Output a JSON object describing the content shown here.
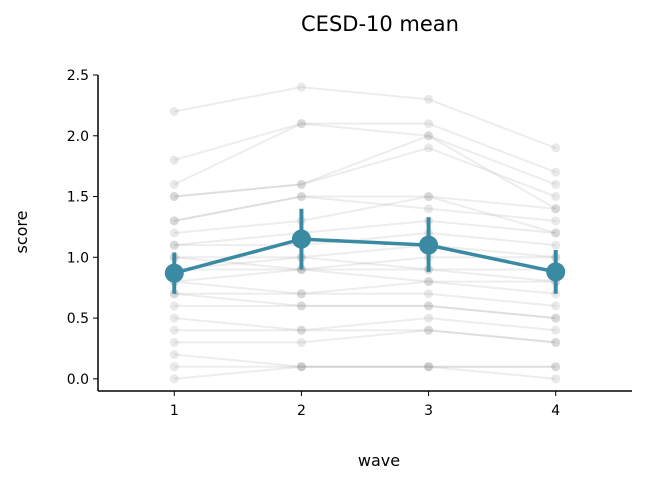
{
  "chart_data": {
    "type": "line",
    "title": "CESD-10 mean",
    "xlabel": "wave",
    "ylabel": "score",
    "x": [
      1,
      2,
      3,
      4
    ],
    "xlim": [
      0.4,
      4.6
    ],
    "ylim": [
      -0.1,
      2.5
    ],
    "yticks": [
      0.0,
      0.5,
      1.0,
      1.5,
      2.0,
      2.5
    ],
    "ytick_labels": [
      "0.0",
      "0.5",
      "1.0",
      "1.5",
      "2.0",
      "2.5"
    ],
    "xtick_labels": [
      "1",
      "2",
      "3",
      "4"
    ],
    "grid": false,
    "mean_series": {
      "values": [
        0.87,
        1.15,
        1.1,
        0.88
      ],
      "ci_low": [
        0.7,
        0.9,
        0.88,
        0.7
      ],
      "ci_high": [
        1.04,
        1.4,
        1.33,
        1.06
      ],
      "color": "#3a8aa3"
    },
    "individual_color": "#9a9a9a",
    "individuals": [
      [
        2.2,
        2.4,
        2.3,
        1.9
      ],
      [
        1.8,
        2.1,
        2.1,
        1.7
      ],
      [
        1.6,
        2.1,
        2.0,
        1.6
      ],
      [
        1.5,
        1.6,
        2.0,
        1.4
      ],
      [
        1.5,
        1.6,
        1.9,
        1.5
      ],
      [
        1.3,
        1.5,
        1.5,
        1.4
      ],
      [
        1.3,
        1.5,
        1.4,
        1.3
      ],
      [
        1.2,
        1.3,
        1.5,
        1.2
      ],
      [
        1.1,
        1.2,
        1.3,
        1.2
      ],
      [
        1.1,
        1.1,
        1.2,
        1.1
      ],
      [
        1.0,
        1.0,
        1.1,
        1.0
      ],
      [
        1.0,
        0.9,
        1.0,
        1.0
      ],
      [
        0.9,
        1.0,
        0.9,
        0.9
      ],
      [
        0.9,
        0.9,
        0.8,
        0.8
      ],
      [
        0.8,
        0.9,
        0.9,
        0.8
      ],
      [
        0.8,
        0.7,
        0.8,
        0.7
      ],
      [
        0.7,
        0.7,
        0.7,
        0.6
      ],
      [
        0.7,
        0.6,
        0.6,
        0.5
      ],
      [
        0.6,
        0.6,
        0.6,
        0.5
      ],
      [
        0.5,
        0.4,
        0.5,
        0.4
      ],
      [
        0.4,
        0.4,
        0.4,
        0.3
      ],
      [
        0.3,
        0.3,
        0.4,
        0.3
      ],
      [
        0.2,
        0.1,
        0.1,
        0.1
      ],
      [
        0.1,
        0.1,
        0.1,
        0.0
      ],
      [
        0.0,
        0.1,
        0.1,
        0.1
      ]
    ]
  }
}
